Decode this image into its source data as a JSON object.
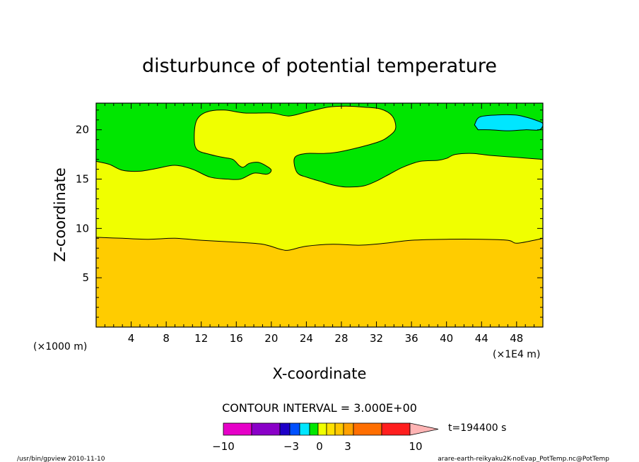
{
  "chart_data": {
    "type": "contour",
    "title": "disturbunce of potential temperature",
    "xlabel": "X-coordinate",
    "ylabel": "Z-coordinate",
    "x_unit_label": "(×1000 m)",
    "y_unit_label": "(×1E4 m)",
    "xlim": [
      0,
      51
    ],
    "ylim": [
      0,
      22.7
    ],
    "x_ticks": [
      4,
      8,
      12,
      16,
      20,
      24,
      28,
      32,
      36,
      40,
      44,
      48
    ],
    "y_ticks": [
      5,
      10,
      15,
      20
    ],
    "contour_interval_label": "CONTOUR INTERVAL = 3.000E+00",
    "time_label": "t=194400 s",
    "colorbar": {
      "tick_labels": [
        "−10",
        "−3",
        "0",
        "3",
        "10"
      ],
      "tick_values": [
        -10,
        -3,
        0,
        3,
        10
      ],
      "colors": [
        "#e600c8",
        "#8a00c8",
        "#1e00c8",
        "#0050ff",
        "#00e6ff",
        "#00e600",
        "#f0ff00",
        "#ffe100",
        "#ffc800",
        "#ffa000",
        "#ff6e00",
        "#ff1e1e",
        "#ff7878",
        "#ffb4b4"
      ]
    },
    "regions": [
      {
        "name": "orange",
        "color": "#ffcc00",
        "level": "0 to 3"
      },
      {
        "name": "yellow",
        "color": "#f0ff00",
        "level": "-1 to 0"
      },
      {
        "name": "green",
        "color": "#00e600",
        "level": "-2 to -1"
      },
      {
        "name": "cyan",
        "color": "#00e6ff",
        "level": "-3 to -2"
      }
    ],
    "contours": {
      "orange_top": [
        [
          0,
          9.1
        ],
        [
          3,
          9.0
        ],
        [
          6,
          8.9
        ],
        [
          9,
          9.0
        ],
        [
          12,
          8.8
        ],
        [
          16,
          8.6
        ],
        [
          19,
          8.4
        ],
        [
          21,
          7.9
        ],
        [
          22,
          7.8
        ],
        [
          24,
          8.2
        ],
        [
          27,
          8.4
        ],
        [
          30,
          8.3
        ],
        [
          33,
          8.5
        ],
        [
          36,
          8.8
        ],
        [
          40,
          8.9
        ],
        [
          44,
          8.9
        ],
        [
          47,
          8.8
        ],
        [
          48,
          8.5
        ],
        [
          50,
          8.8
        ],
        [
          51,
          9.0
        ]
      ],
      "green_lower_left": [
        [
          0,
          16.8
        ],
        [
          1.5,
          16.5
        ],
        [
          3,
          15.9
        ],
        [
          5,
          15.8
        ],
        [
          7,
          16.1
        ],
        [
          9,
          16.4
        ],
        [
          11,
          16.0
        ],
        [
          13,
          15.2
        ],
        [
          15,
          15.0
        ],
        [
          16.5,
          15.0
        ],
        [
          18,
          15.6
        ],
        [
          19.5,
          15.5
        ],
        [
          20,
          15.9
        ],
        [
          19.5,
          16.3
        ],
        [
          18.5,
          16.7
        ],
        [
          17.5,
          16.6
        ],
        [
          17,
          16.3
        ],
        [
          16.7,
          16.2
        ],
        [
          16.3,
          16.4
        ],
        [
          15.6,
          17.0
        ],
        [
          14.5,
          17.2
        ],
        [
          13,
          17.5
        ],
        [
          11.5,
          18.0
        ],
        [
          11.2,
          19.3
        ],
        [
          11.5,
          21.0
        ],
        [
          12.6,
          21.8
        ],
        [
          14.6,
          22.0
        ],
        [
          17,
          21.7
        ],
        [
          20,
          21.7
        ],
        [
          22,
          21.4
        ],
        [
          24,
          21.8
        ],
        [
          26.5,
          22.3
        ],
        [
          28.5,
          22.4
        ],
        [
          30.5,
          22.3
        ],
        [
          32.5,
          22.1
        ],
        [
          33.8,
          21.4
        ],
        [
          34.2,
          20.2
        ],
        [
          33.5,
          19.4
        ],
        [
          32,
          18.7
        ],
        [
          28,
          17.8
        ],
        [
          26,
          17.6
        ],
        [
          24,
          17.6
        ],
        [
          22.8,
          17.3
        ],
        [
          22.6,
          16.6
        ],
        [
          23,
          15.6
        ],
        [
          24,
          15.2
        ],
        [
          25.5,
          14.8
        ],
        [
          27,
          14.4
        ],
        [
          28.5,
          14.2
        ],
        [
          30.5,
          14.3
        ],
        [
          32,
          14.8
        ],
        [
          33.5,
          15.5
        ],
        [
          35,
          16.2
        ],
        [
          37,
          16.8
        ],
        [
          39,
          16.9
        ],
        [
          40,
          17.1
        ],
        [
          41,
          17.5
        ],
        [
          43,
          17.6
        ],
        [
          45,
          17.4
        ],
        [
          48,
          17.2
        ],
        [
          51,
          17.0
        ]
      ],
      "cyan_blob": [
        [
          43.2,
          20.5
        ],
        [
          43.8,
          21.3
        ],
        [
          45.8,
          21.5
        ],
        [
          47.8,
          21.5
        ],
        [
          49,
          21.3
        ],
        [
          50.4,
          20.9
        ],
        [
          51,
          20.6
        ],
        [
          50.6,
          20.0
        ],
        [
          49,
          20.0
        ],
        [
          47,
          19.9
        ],
        [
          45,
          20.0
        ],
        [
          43.6,
          20.0
        ]
      ]
    },
    "footer_left": "/usr/bin/gpview   2010-11-10",
    "footer_right": "arare-earth-reikyaku2K-noEvap_PotTemp.nc@PotTemp"
  }
}
